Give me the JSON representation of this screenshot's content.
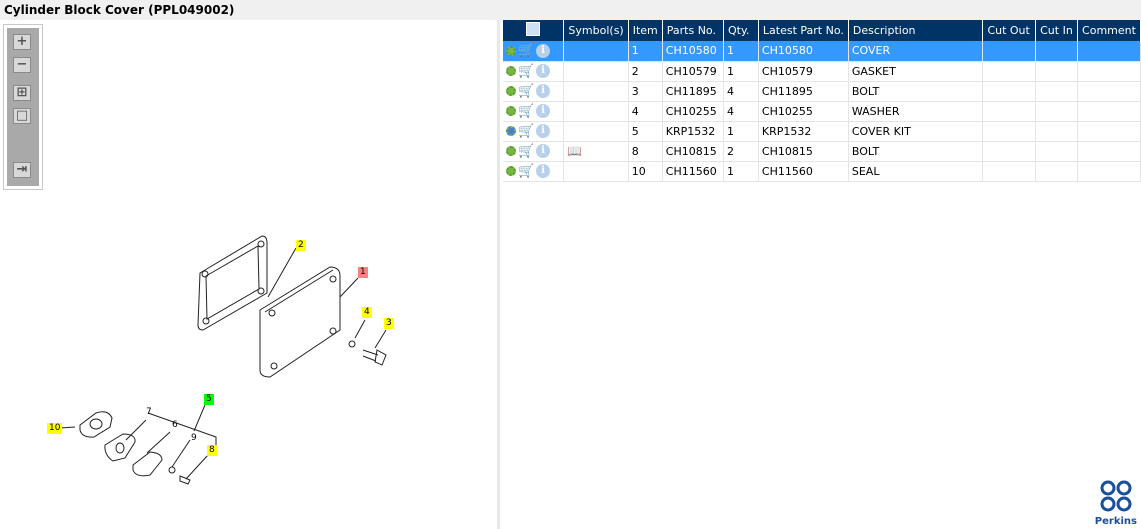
{
  "title": "Cylinder Block Cover (PPL049002)",
  "toolbar": {
    "zoom_in": "+",
    "zoom_out": "−",
    "fit": "⊞",
    "actual": "□",
    "export": "⇥"
  },
  "table": {
    "headers": [
      "",
      "Symbol(s)",
      "Item",
      "Parts No.",
      "Qty.",
      "Latest Part No.",
      "Description",
      "Cut Out",
      "Cut In",
      "Comment"
    ],
    "rows": [
      {
        "item": "1",
        "part": "CH10580",
        "qty": "1",
        "latest": "CH10580",
        "desc": "COVER",
        "selected": true
      },
      {
        "item": "2",
        "part": "CH10579",
        "qty": "1",
        "latest": "CH10579",
        "desc": "GASKET"
      },
      {
        "item": "3",
        "part": "CH11895",
        "qty": "4",
        "latest": "CH11895",
        "desc": "BOLT"
      },
      {
        "item": "4",
        "part": "CH10255",
        "qty": "4",
        "latest": "CH10255",
        "desc": "WASHER"
      },
      {
        "item": "5",
        "part": "KRP1532",
        "qty": "1",
        "latest": "KRP1532",
        "desc": "COVER KIT",
        "kit": true
      },
      {
        "item": "8",
        "part": "CH10815",
        "qty": "2",
        "latest": "CH10815",
        "desc": "BOLT",
        "symbol": "book-search-icon"
      },
      {
        "item": "10",
        "part": "CH11560",
        "qty": "1",
        "latest": "CH11560",
        "desc": "SEAL"
      }
    ]
  },
  "diagram": {
    "callouts": [
      "1",
      "2",
      "3",
      "4",
      "5",
      "6",
      "7",
      "8",
      "9",
      "10"
    ]
  },
  "brand": "Perkins",
  "colors": {
    "header": "#003366",
    "selected": "#3399ff",
    "highlight": "#ffff00",
    "selected_callout": "#ff8080",
    "kit_callout": "#00ff00"
  }
}
